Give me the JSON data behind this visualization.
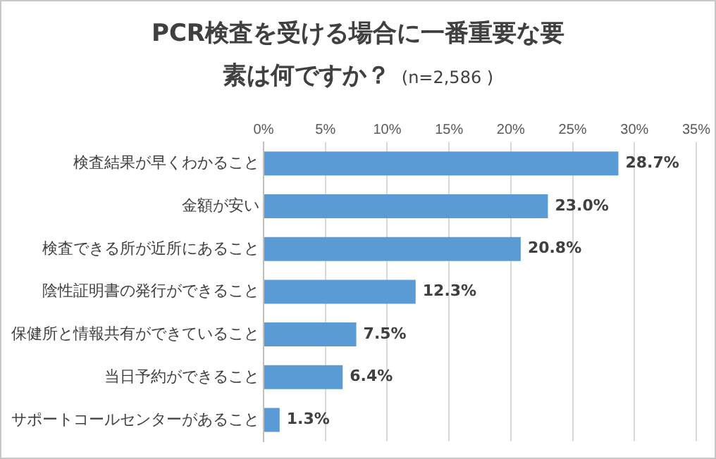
{
  "chart_data": {
    "type": "bar",
    "orientation": "horizontal",
    "title": "PCR検査を受ける場合に一番重要な要素は何ですか？",
    "subtitle": "(n=2,586 )",
    "categories": [
      "検査結果が早くわかること",
      "金額が安い",
      "検査できる所が近所にあること",
      "陰性証明書の発行ができること",
      "保健所と情報共有ができていること",
      "当日予約ができること",
      "サポートコールセンターがあること"
    ],
    "values": [
      28.7,
      23.0,
      20.8,
      12.3,
      7.5,
      6.4,
      1.3
    ],
    "value_labels": [
      "28.7%",
      "23.0%",
      "20.8%",
      "12.3%",
      "7.5%",
      "6.4%",
      "1.3%"
    ],
    "color": "#5b9bd5",
    "xlim": [
      0,
      35
    ],
    "xticks": [
      {
        "value": 0,
        "label": "0%"
      },
      {
        "value": 5,
        "label": "5%"
      },
      {
        "value": 10,
        "label": "10%"
      },
      {
        "value": 15,
        "label": "15%"
      },
      {
        "value": 20,
        "label": "20%"
      },
      {
        "value": 25,
        "label": "25%"
      },
      {
        "value": 30,
        "label": "30%"
      },
      {
        "value": 35,
        "label": "35%"
      }
    ],
    "grid": "x",
    "legend": false
  }
}
